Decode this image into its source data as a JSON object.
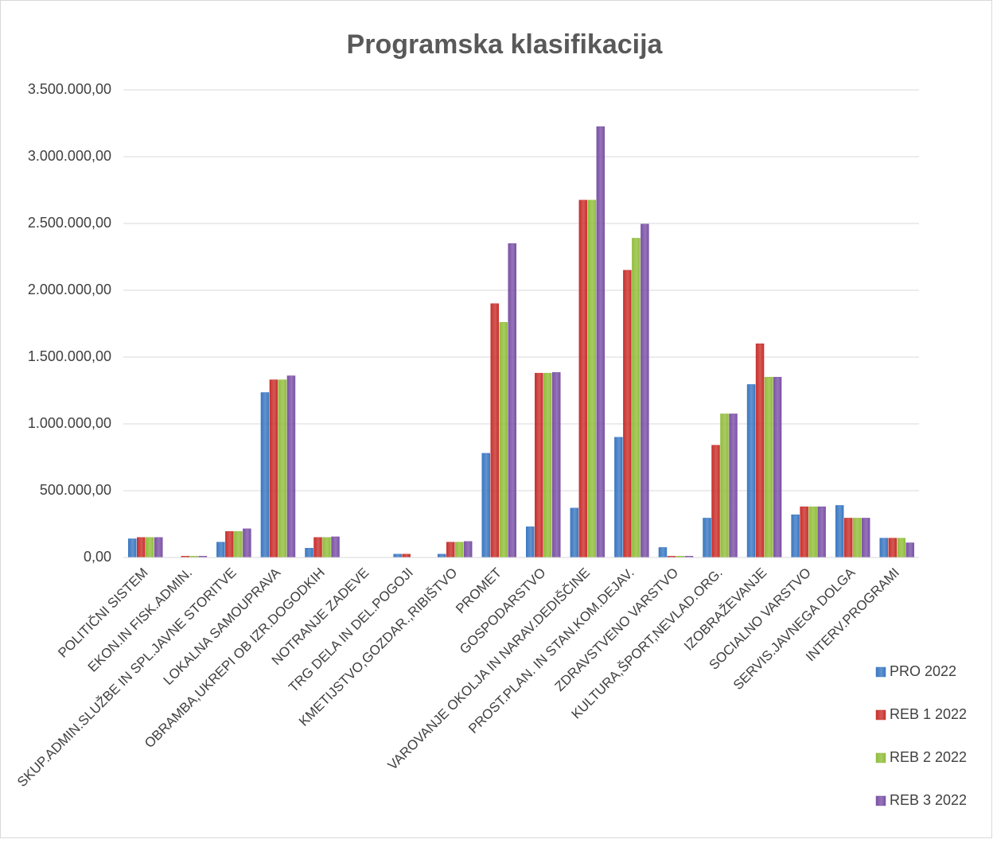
{
  "chart_data": {
    "type": "bar",
    "title": "Programska klasifikacija",
    "categories": [
      "POLITIČNI SISTEM",
      "EKON.IN FISK.ADMIN.",
      "SKUP.ADMIN.SLUŽBE IN SPL.JAVNE STORITVE",
      "LOKALNA SAMOUPRAVA",
      "OBRAMBA,UKREPI OB IZR.DOGODKIH",
      "NOTRANJE ZADEVE",
      "TRG DELA IN DEL.POGOJI",
      "KMETIJSTVO,GOZDAR.,RIBIŠTVO",
      "PROMET",
      "GOSPODARSTVO",
      "VAROVANJE OKOLJA IN NARAV.DEDIŠČINE",
      "PROST.PLAN. IN STAN.KOM.DEJAV.",
      "ZDRAVSTVENO VARSTVO",
      "KULTURA,ŠPORT,NEVLAD.ORG.",
      "IZOBRAŽEVANJE",
      "SOCIALNO VARSTVO",
      "SERVIS.JAVNEGA DOLGA",
      "INTERV.PROGRAMI"
    ],
    "series": [
      {
        "name": "PRO 2022",
        "color": "#3b78c2",
        "values": [
          140000,
          0,
          115000,
          1235000,
          70000,
          0,
          25000,
          25000,
          780000,
          230000,
          370000,
          900000,
          75000,
          295000,
          1295000,
          320000,
          390000,
          145000
        ]
      },
      {
        "name": "REB 1 2022",
        "color": "#c9302c",
        "values": [
          150000,
          10000,
          195000,
          1330000,
          150000,
          0,
          25000,
          115000,
          1900000,
          1380000,
          2675000,
          2150000,
          10000,
          840000,
          1600000,
          380000,
          295000,
          145000
        ]
      },
      {
        "name": "REB 2 2022",
        "color": "#92be3c",
        "values": [
          150000,
          10000,
          195000,
          1330000,
          150000,
          0,
          0,
          115000,
          1760000,
          1380000,
          2675000,
          2390000,
          10000,
          1075000,
          1350000,
          380000,
          295000,
          145000
        ]
      },
      {
        "name": "REB 3 2022",
        "color": "#7b52a6",
        "values": [
          150000,
          10000,
          215000,
          1360000,
          155000,
          0,
          0,
          120000,
          2350000,
          1385000,
          3225000,
          2495000,
          10000,
          1075000,
          1350000,
          380000,
          295000,
          110000
        ]
      }
    ],
    "ylim": [
      0,
      3500000
    ],
    "yticks": [
      {
        "value": 0,
        "label": "0,00"
      },
      {
        "value": 500000,
        "label": "500.000,00"
      },
      {
        "value": 1000000,
        "label": "1.000.000,00"
      },
      {
        "value": 1500000,
        "label": "1.500.000,00"
      },
      {
        "value": 2000000,
        "label": "2.000.000,00"
      },
      {
        "value": 2500000,
        "label": "2.500.000,00"
      },
      {
        "value": 3000000,
        "label": "3.000.000,00"
      },
      {
        "value": 3500000,
        "label": "3.500.000,00"
      }
    ],
    "grid": true,
    "legend": "right"
  }
}
